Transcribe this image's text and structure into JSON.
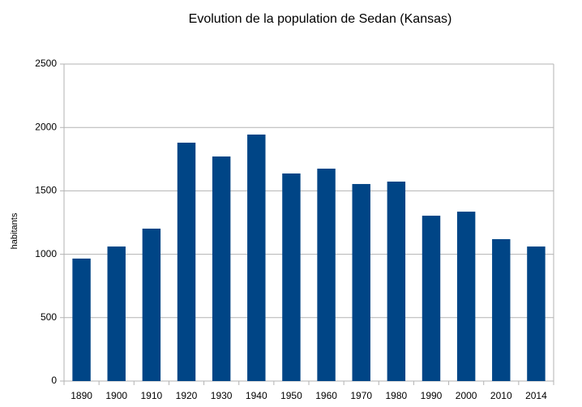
{
  "chart_data": {
    "type": "bar",
    "title": "Evolution de la population de Sedan (Kansas)",
    "y_label": "habitants",
    "categories": [
      "1890",
      "1900",
      "1910",
      "1920",
      "1930",
      "1940",
      "1950",
      "1960",
      "1970",
      "1980",
      "1990",
      "2000",
      "2010",
      "2014"
    ],
    "values": [
      966,
      1061,
      1202,
      1880,
      1771,
      1944,
      1637,
      1675,
      1554,
      1573,
      1304,
      1336,
      1119,
      1061
    ],
    "color": "#004586",
    "ylim": [
      0,
      2500
    ],
    "yticks": [
      0,
      500,
      1000,
      1500,
      2000,
      2500
    ],
    "grid": true
  }
}
